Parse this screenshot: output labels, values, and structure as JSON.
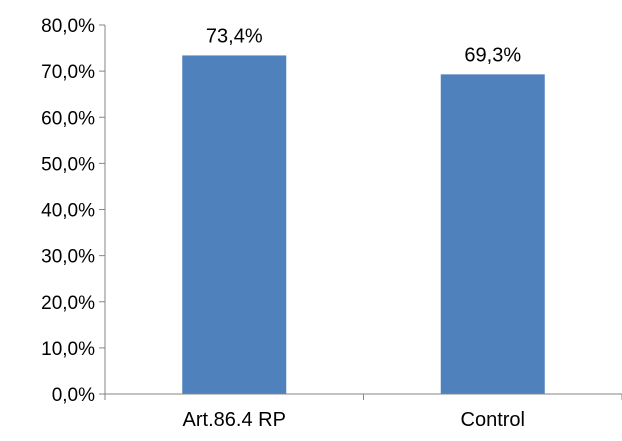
{
  "chart_data": {
    "type": "bar",
    "categories": [
      "Art.86.4 RP",
      "Control"
    ],
    "values": [
      73.4,
      69.3
    ],
    "data_labels": [
      "73,4%",
      "69,3%"
    ],
    "ylim": [
      0,
      80
    ],
    "yticks": [
      0,
      10,
      20,
      30,
      40,
      50,
      60,
      70,
      80
    ],
    "ytick_labels": [
      "0,0%",
      "10,0%",
      "20,0%",
      "30,0%",
      "40,0%",
      "50,0%",
      "60,0%",
      "70,0%",
      "80,0%"
    ],
    "grid": false,
    "legend": "none",
    "bar_color": "#4f81bd",
    "axis_color": "#868686"
  }
}
